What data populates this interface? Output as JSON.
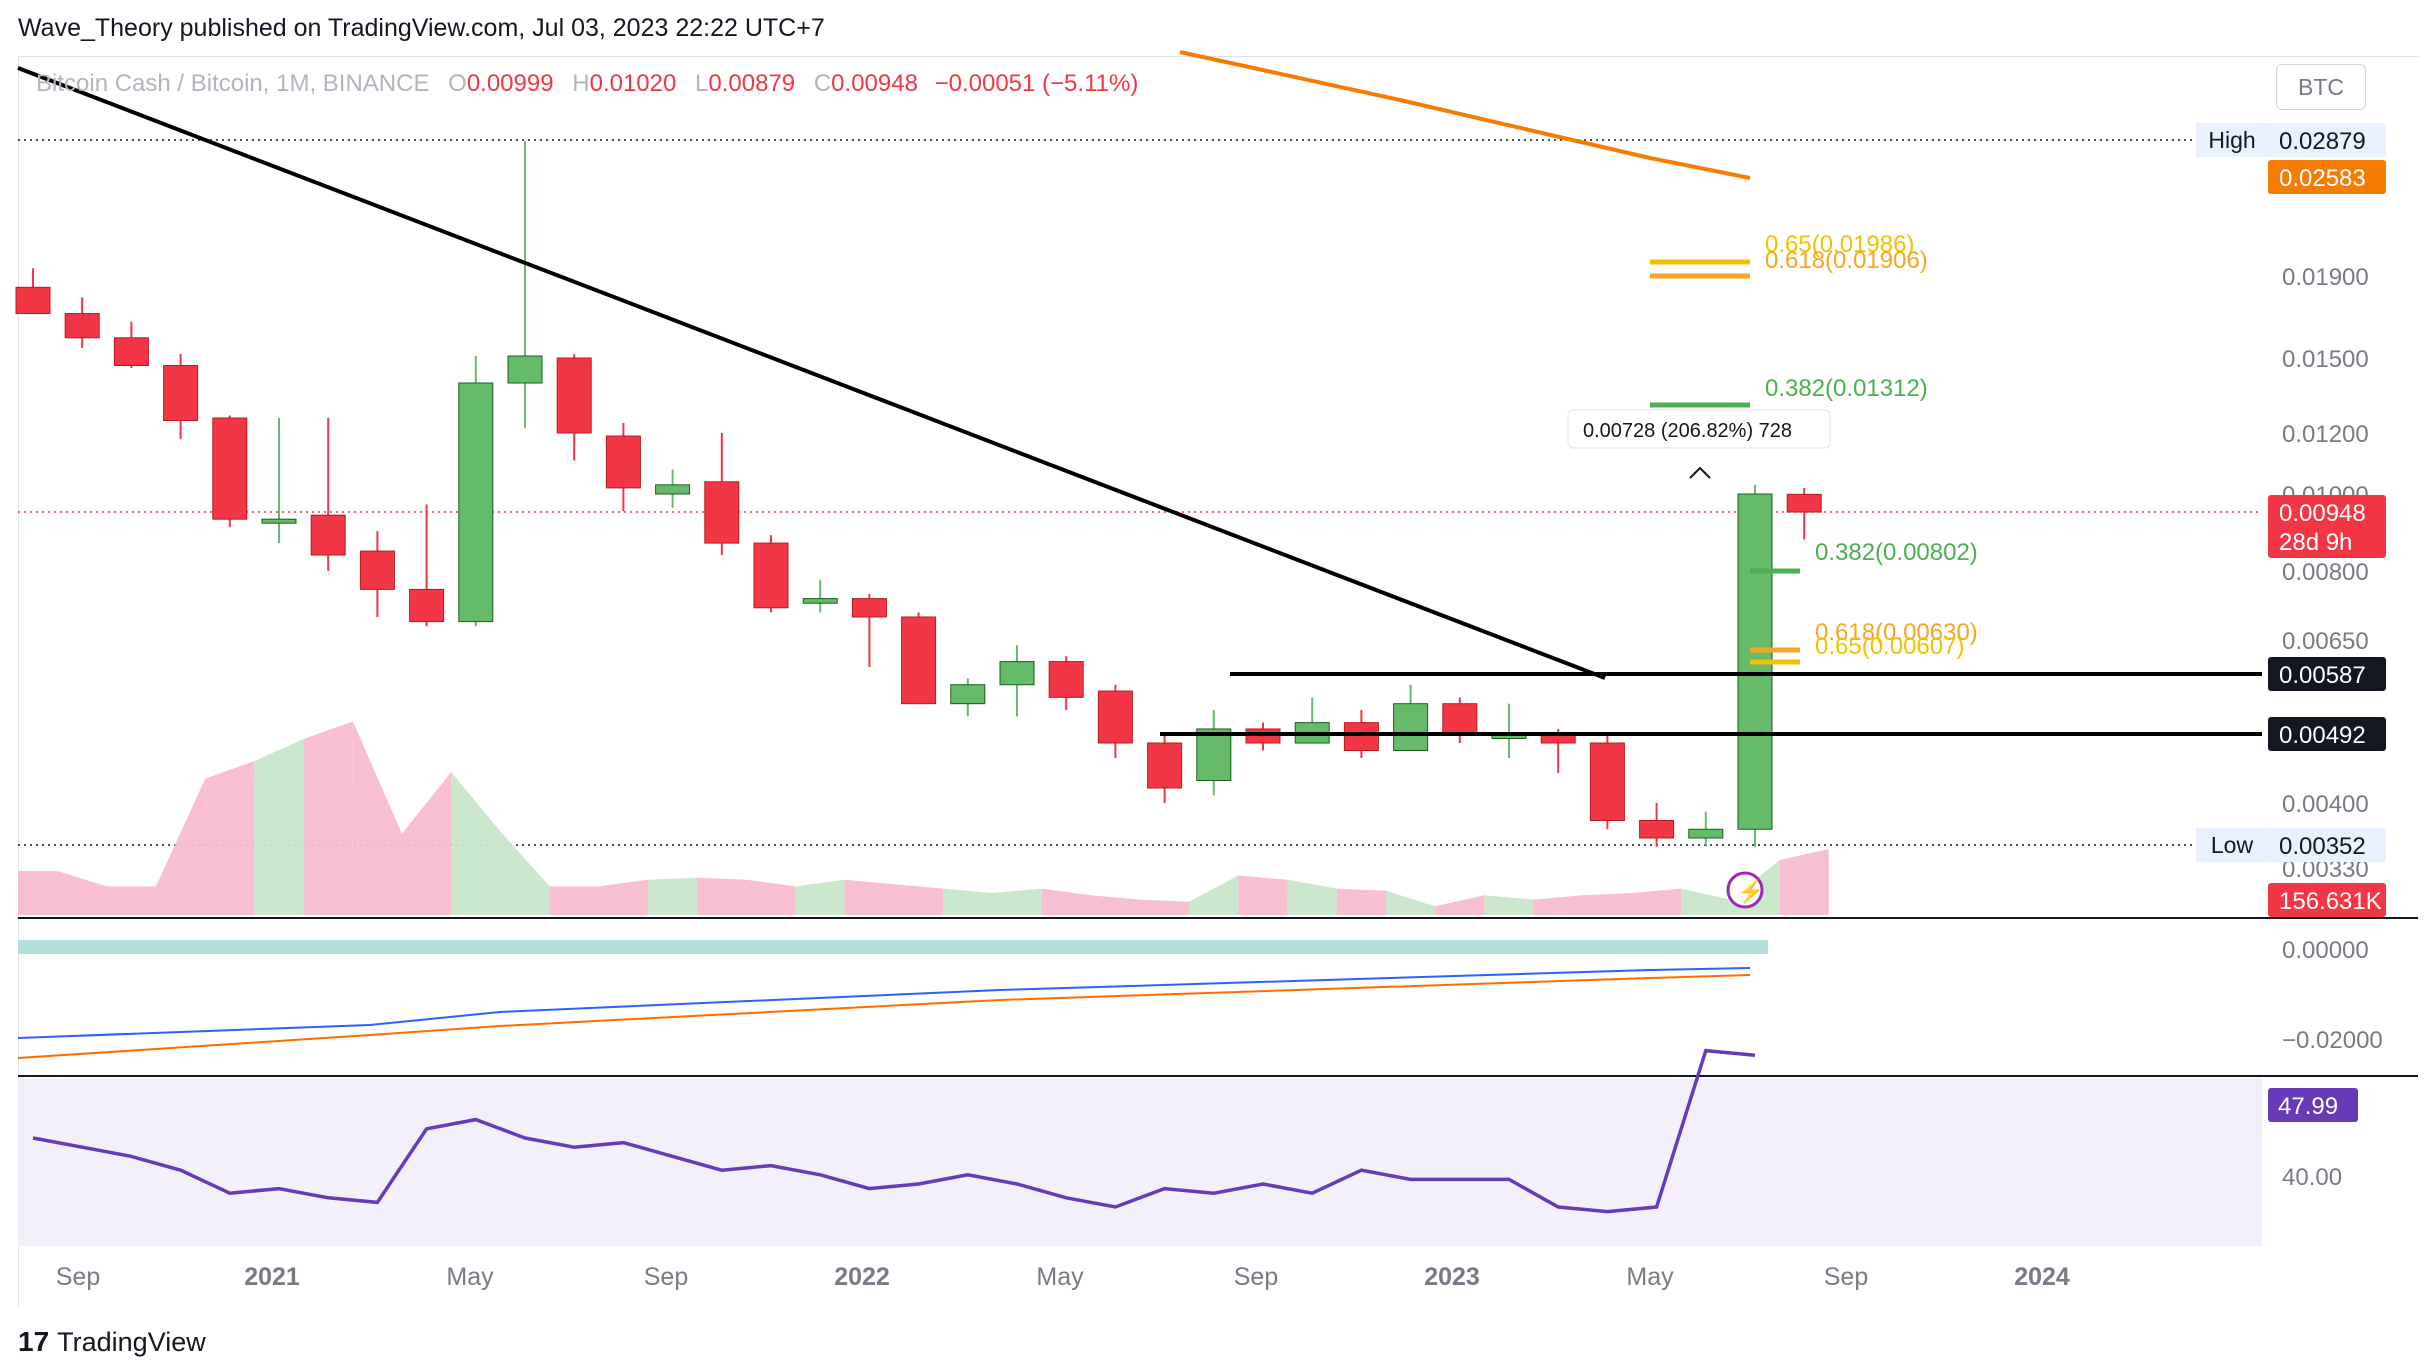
{
  "header": {
    "publisher": "Wave_Theory published on TradingView.com, Jul 03, 2023 22:22 UTC+7"
  },
  "legend": {
    "symbol": "Bitcoin Cash / Bitcoin, 1M, BINANCE",
    "open_label": "O",
    "open": "0.00999",
    "high_label": "H",
    "high": "0.01020",
    "low_label": "L",
    "low": "0.00879",
    "close_label": "C",
    "close": "0.00948",
    "change": "−0.00051 (−5.11%)"
  },
  "currency_button": "BTC",
  "footer": {
    "brand": "TradingView"
  },
  "colors": {
    "up": "#66bb6a",
    "down": "#f23645",
    "trendline": "#000000",
    "ema": "#f57c00",
    "fib_gold": "#f2c200",
    "fib_orange": "#f5a623",
    "fib_green": "#4caf50",
    "rsi": "#673ab7",
    "macd": "#2962ff",
    "signal": "#ff6d00"
  },
  "chart_data": {
    "type": "candlestick",
    "x_axis_labels": [
      "Sep",
      "2021",
      "May",
      "Sep",
      "2022",
      "May",
      "Sep",
      "2023",
      "May",
      "Sep",
      "2024"
    ],
    "y_axis_labels": [
      "0.01900",
      "0.01500",
      "0.01200",
      "0.01000",
      "0.00800",
      "0.00650",
      "0.00400",
      "0.00330"
    ],
    "price_tags": [
      {
        "label": "High",
        "value": "0.02879"
      },
      {
        "label": "",
        "value": "0.02583"
      },
      {
        "label": "",
        "value": "0.00948"
      },
      {
        "label": "",
        "value": "28d 9h"
      },
      {
        "label": "",
        "value": "0.00587"
      },
      {
        "label": "",
        "value": "0.00492"
      },
      {
        "label": "Low",
        "value": "0.00352"
      },
      {
        "label": "",
        "value": "156.631K"
      }
    ],
    "fib_labels": [
      {
        "text": "0.65(0.01986)"
      },
      {
        "text": "0.618(0.01906)"
      },
      {
        "text": "0.382(0.01312)"
      },
      {
        "text": "0.382(0.00802)"
      },
      {
        "text": "0.618(0.00630)"
      },
      {
        "text": "0.65(0.00607)"
      }
    ],
    "measure_label": "0.00728 (206.82%) 728",
    "candles": [
      {
        "o": 0.0185,
        "h": 0.0195,
        "l": 0.0172,
        "c": 0.0172
      },
      {
        "o": 0.0172,
        "h": 0.018,
        "l": 0.0155,
        "c": 0.016
      },
      {
        "o": 0.016,
        "h": 0.0168,
        "l": 0.0146,
        "c": 0.0147
      },
      {
        "o": 0.0147,
        "h": 0.0152,
        "l": 0.0118,
        "c": 0.0125
      },
      {
        "o": 0.0126,
        "h": 0.0127,
        "l": 0.0091,
        "c": 0.0093
      },
      {
        "o": 0.0092,
        "h": 0.0126,
        "l": 0.0087,
        "c": 0.0093
      },
      {
        "o": 0.0094,
        "h": 0.0126,
        "l": 0.008,
        "c": 0.0084
      },
      {
        "o": 0.0085,
        "h": 0.009,
        "l": 0.007,
        "c": 0.0076
      },
      {
        "o": 0.0076,
        "h": 0.0097,
        "l": 0.0068,
        "c": 0.0069
      },
      {
        "o": 0.0069,
        "h": 0.0151,
        "l": 0.0068,
        "c": 0.014
      },
      {
        "o": 0.014,
        "h": 0.0287,
        "l": 0.0122,
        "c": 0.0151
      },
      {
        "o": 0.015,
        "h": 0.0152,
        "l": 0.0111,
        "c": 0.012
      },
      {
        "o": 0.0119,
        "h": 0.0124,
        "l": 0.0095,
        "c": 0.0102
      },
      {
        "o": 0.01,
        "h": 0.0108,
        "l": 0.0096,
        "c": 0.0103
      },
      {
        "o": 0.0104,
        "h": 0.012,
        "l": 0.0084,
        "c": 0.0087
      },
      {
        "o": 0.0087,
        "h": 0.0089,
        "l": 0.0071,
        "c": 0.0072
      },
      {
        "o": 0.0073,
        "h": 0.0078,
        "l": 0.0071,
        "c": 0.0074
      },
      {
        "o": 0.0074,
        "h": 0.0075,
        "l": 0.006,
        "c": 0.007
      },
      {
        "o": 0.007,
        "h": 0.0071,
        "l": 0.0054,
        "c": 0.0054
      },
      {
        "o": 0.0054,
        "h": 0.0058,
        "l": 0.0052,
        "c": 0.0057
      },
      {
        "o": 0.0057,
        "h": 0.0064,
        "l": 0.0052,
        "c": 0.0061
      },
      {
        "o": 0.0061,
        "h": 0.0062,
        "l": 0.0053,
        "c": 0.0055
      },
      {
        "o": 0.0056,
        "h": 0.0057,
        "l": 0.0046,
        "c": 0.0048
      },
      {
        "o": 0.0048,
        "h": 0.0049,
        "l": 0.004,
        "c": 0.0042
      },
      {
        "o": 0.0043,
        "h": 0.0053,
        "l": 0.0041,
        "c": 0.005
      },
      {
        "o": 0.005,
        "h": 0.0051,
        "l": 0.0047,
        "c": 0.0048
      },
      {
        "o": 0.0048,
        "h": 0.0055,
        "l": 0.0048,
        "c": 0.0051
      },
      {
        "o": 0.0051,
        "h": 0.0053,
        "l": 0.0046,
        "c": 0.0047
      },
      {
        "o": 0.0047,
        "h": 0.0057,
        "l": 0.0047,
        "c": 0.0054
      },
      {
        "o": 0.0054,
        "h": 0.0055,
        "l": 0.0048,
        "c": 0.0049
      },
      {
        "o": 0.0049,
        "h": 0.0054,
        "l": 0.0046,
        "c": 0.0049
      },
      {
        "o": 0.0049,
        "h": 0.005,
        "l": 0.0044,
        "c": 0.0048
      },
      {
        "o": 0.0048,
        "h": 0.0049,
        "l": 0.0037,
        "c": 0.0038
      },
      {
        "o": 0.0038,
        "h": 0.004,
        "l": 0.0035,
        "c": 0.0036
      },
      {
        "o": 0.0036,
        "h": 0.0039,
        "l": 0.0035,
        "c": 0.0037
      },
      {
        "o": 0.0037,
        "h": 0.0103,
        "l": 0.0035,
        "c": 0.01
      },
      {
        "o": 0.00999,
        "h": 0.0102,
        "l": 0.00879,
        "c": 0.00948
      }
    ],
    "volume": [
      0.2,
      0.13,
      0.13,
      0.62,
      0.7,
      0.8,
      0.88,
      0.37,
      0.65,
      0.38,
      0.13,
      0.13,
      0.16,
      0.17,
      0.16,
      0.13,
      0.16,
      0.14,
      0.12,
      0.1,
      0.12,
      0.09,
      0.07,
      0.06,
      0.18,
      0.16,
      0.12,
      0.11,
      0.04,
      0.09,
      0.07,
      0.09,
      0.1,
      0.12,
      0.07,
      0.25,
      0.3
    ],
    "rsi": [
      55,
      53,
      51,
      48,
      43,
      44,
      42,
      41,
      57,
      59,
      55,
      53,
      54,
      51,
      48,
      49,
      47,
      44,
      45,
      47,
      45,
      42,
      40,
      44,
      43,
      45,
      43,
      48,
      46,
      46,
      46,
      40,
      39,
      40,
      74,
      73
    ],
    "rsi_axis_labels": [
      "40.00"
    ],
    "rsi_value": "47.99",
    "macd_axis_labels": [
      "0.00000",
      "−0.02000"
    ]
  }
}
